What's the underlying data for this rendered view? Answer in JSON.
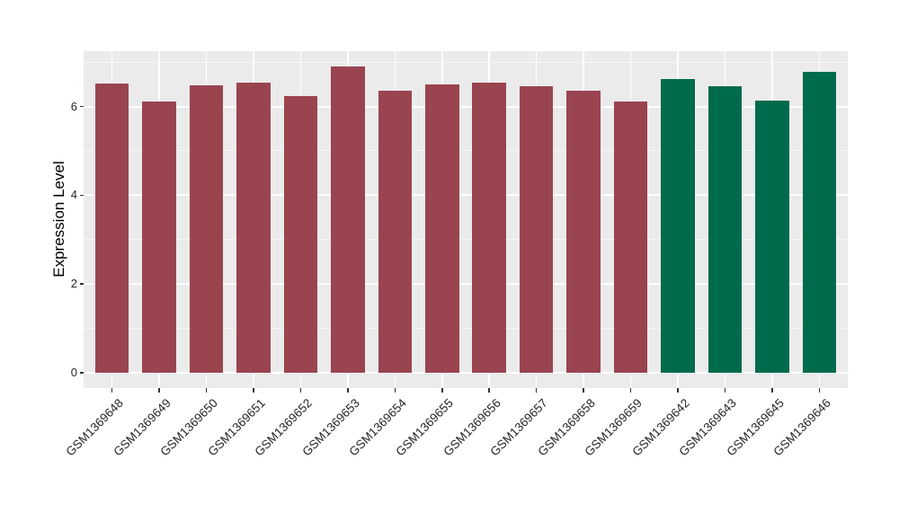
{
  "chart_data": {
    "type": "bar",
    "title": "",
    "xlabel": "",
    "ylabel": "Expression Level",
    "categories": [
      "GSM1369648",
      "GSM1369649",
      "GSM1369650",
      "GSM1369651",
      "GSM1369652",
      "GSM1369653",
      "GSM1369654",
      "GSM1369655",
      "GSM1369656",
      "GSM1369657",
      "GSM1369658",
      "GSM1369659",
      "GSM1369642",
      "GSM1369643",
      "GSM1369645",
      "GSM1369646"
    ],
    "values": [
      6.52,
      6.12,
      6.47,
      6.54,
      6.23,
      6.9,
      6.36,
      6.49,
      6.53,
      6.45,
      6.35,
      6.12,
      6.62,
      6.46,
      6.13,
      6.78
    ],
    "groups": [
      "maroon",
      "maroon",
      "maroon",
      "maroon",
      "maroon",
      "maroon",
      "maroon",
      "maroon",
      "maroon",
      "maroon",
      "maroon",
      "maroon",
      "green",
      "green",
      "green",
      "green"
    ],
    "group_colors": {
      "maroon": "#9A4450",
      "green": "#006B4C"
    },
    "yticks": [
      0,
      2,
      4,
      6
    ],
    "minor_gridlines": [
      1,
      3,
      5,
      7
    ],
    "ylim": [
      0,
      7.24
    ],
    "x_label_rotation_deg": 45,
    "legend": "none",
    "panel_background": "#EBEBEB",
    "gridline_color": "#FFFFFF"
  }
}
